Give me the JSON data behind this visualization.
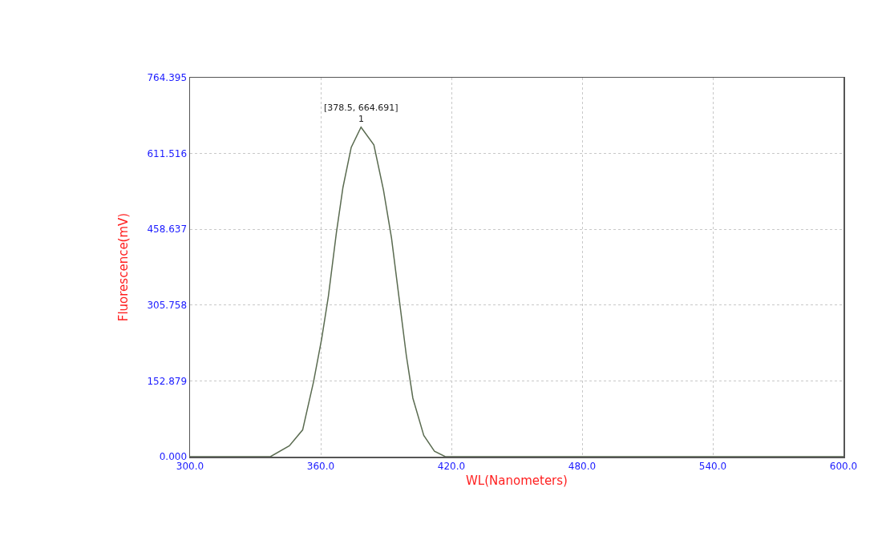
{
  "chart_data": {
    "type": "line",
    "xlabel": "WL(Nanometers)",
    "ylabel": "Fluorescence(mV)",
    "x": [
      300,
      336.9,
      345.6,
      351.7,
      356.7,
      360.4,
      363.5,
      367.2,
      370.2,
      374,
      378.5,
      384.4,
      388.8,
      392.5,
      396.2,
      399.3,
      402.3,
      407.3,
      412.2,
      417.2,
      600
    ],
    "series": [
      {
        "color": "#5a6b50",
        "values": [
          0,
          0,
          22,
          54,
          151,
          237,
          323,
          452,
          543,
          624,
          664.691,
          629,
          538,
          441,
          312,
          204,
          118,
          43,
          11,
          0,
          0
        ]
      }
    ],
    "xlim": [
      300,
      600
    ],
    "xticks": [
      {
        "value": 300,
        "label": "300.0"
      },
      {
        "value": 360,
        "label": "360.0"
      },
      {
        "value": 420,
        "label": "420.0"
      },
      {
        "value": 480,
        "label": "480.0"
      },
      {
        "value": 540,
        "label": "540.0"
      },
      {
        "value": 600,
        "label": "600.0"
      }
    ],
    "ylim": [
      0,
      764.395
    ],
    "yticks": [
      {
        "value": 0,
        "label": "0.000"
      },
      {
        "value": 152.879,
        "label": "152.879"
      },
      {
        "value": 305.758,
        "label": "305.758"
      },
      {
        "value": 458.637,
        "label": "458.637"
      },
      {
        "value": 611.516,
        "label": "611.516"
      },
      {
        "value": 764.395,
        "label": "764.395"
      }
    ],
    "annotations": [
      {
        "text": "[378.5, 664.691]",
        "x": 378.5,
        "y": 664.691
      },
      {
        "text": "1",
        "x": 378.5,
        "y": 664.691
      }
    ],
    "grid": true,
    "marker": "none",
    "line_style": "solid"
  }
}
